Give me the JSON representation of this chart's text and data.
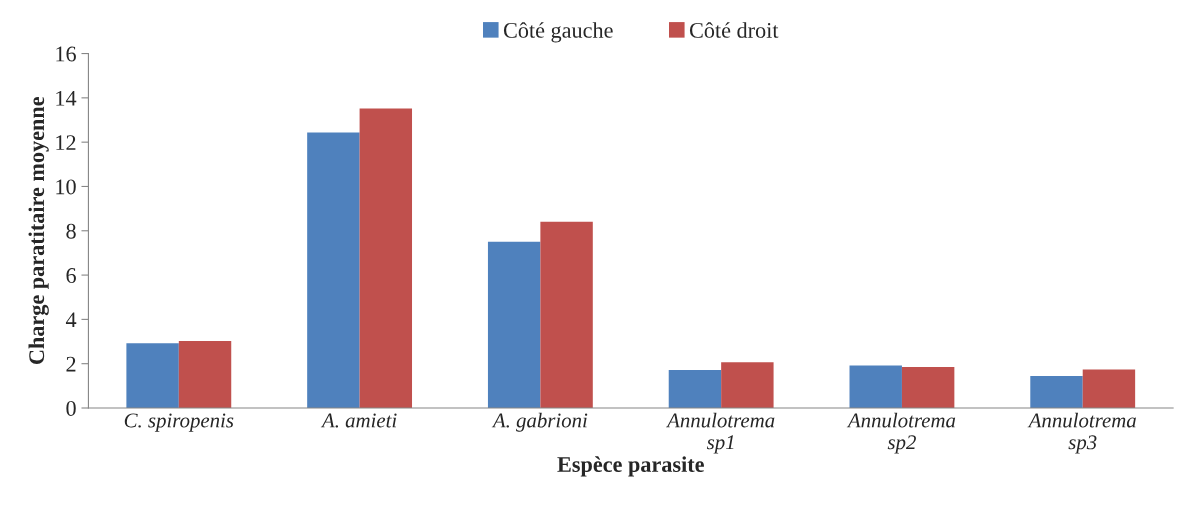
{
  "chart_data": {
    "type": "bar",
    "xlabel": "Espèce parasite",
    "ylabel": "Charge paratitaire moyenne",
    "categories": [
      "C. spiropenis",
      "A. amieti",
      "A. gabrioni",
      "Annulotrema\nsp1",
      "Annulotrema\nsp2",
      "Annulotrema\nsp3"
    ],
    "series": [
      {
        "name": "Côté gauche",
        "color": "#4f81bd",
        "values": [
          2.92,
          12.44,
          7.51,
          1.72,
          1.92,
          1.44
        ]
      },
      {
        "name": "Côté droit",
        "color": "#c0504d",
        "values": [
          3.03,
          13.52,
          8.41,
          2.06,
          1.85,
          1.74
        ]
      }
    ],
    "ylim": [
      0,
      16
    ],
    "yticks": [
      0,
      2,
      4,
      6,
      8,
      10,
      12,
      14,
      16
    ],
    "grid": false,
    "legend": "top"
  }
}
